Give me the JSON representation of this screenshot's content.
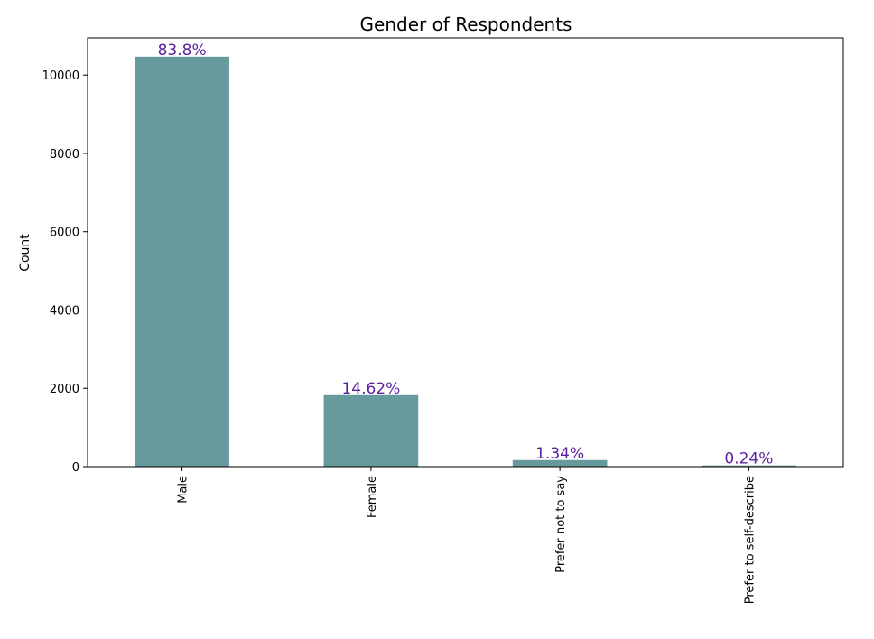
{
  "chart_data": {
    "type": "bar",
    "title": "Gender of Respondents",
    "xlabel": "",
    "ylabel": "Count",
    "categories": [
      "Male",
      "Female",
      "Prefer not to say",
      "Prefer to self-describe"
    ],
    "values": [
      10470,
      1826,
      167,
      30
    ],
    "data_labels": [
      "83.8%",
      "14.62%",
      "1.34%",
      "0.24%"
    ],
    "yticks": [
      0,
      2000,
      4000,
      6000,
      8000,
      10000
    ],
    "ylim": [
      0,
      10950
    ],
    "grid": false,
    "legend": "none",
    "colors": {
      "bar": "#669a9d",
      "data_label": "#5b1fa0"
    }
  }
}
